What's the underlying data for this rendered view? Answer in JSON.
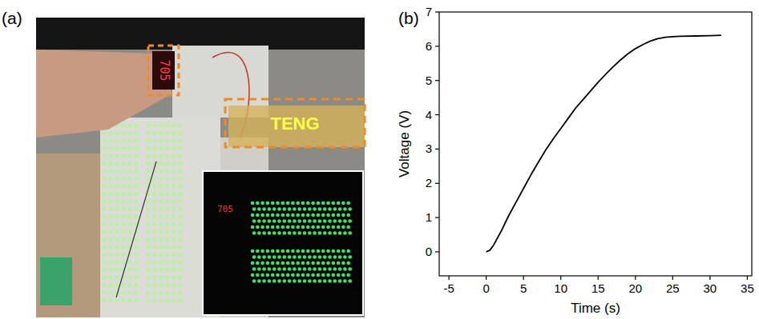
{
  "chart_data": {
    "type": "line",
    "x_label": "Time (s)",
    "y_label": "Voltage (V)",
    "x": [
      0,
      0.5,
      1,
      2,
      3,
      4,
      5,
      6,
      7,
      8,
      9,
      10,
      11,
      12,
      13,
      14,
      15,
      16,
      17,
      18,
      19,
      20,
      21,
      22,
      23,
      24,
      25,
      26,
      28,
      30,
      31.5
    ],
    "values": [
      0,
      0.05,
      0.2,
      0.6,
      1.05,
      1.45,
      1.85,
      2.25,
      2.62,
      2.98,
      3.3,
      3.6,
      3.9,
      4.2,
      4.45,
      4.7,
      4.95,
      5.18,
      5.4,
      5.6,
      5.78,
      5.93,
      6.05,
      6.15,
      6.22,
      6.26,
      6.28,
      6.29,
      6.3,
      6.31,
      6.32
    ],
    "color": "#000000",
    "xlim": [
      -6.3,
      35.6
    ],
    "xticks": [
      -5,
      0,
      5,
      10,
      15,
      20,
      25,
      30,
      35
    ],
    "ylim": [
      -0.7,
      7
    ],
    "yticks": [
      0,
      1,
      2,
      3,
      4,
      5,
      6,
      7
    ],
    "grid": false
  },
  "figure": {
    "panel_labels": [
      "(a)",
      "(b)"
    ]
  },
  "photo": {
    "label": "TENG",
    "displays": [
      "705",
      "705"
    ]
  }
}
